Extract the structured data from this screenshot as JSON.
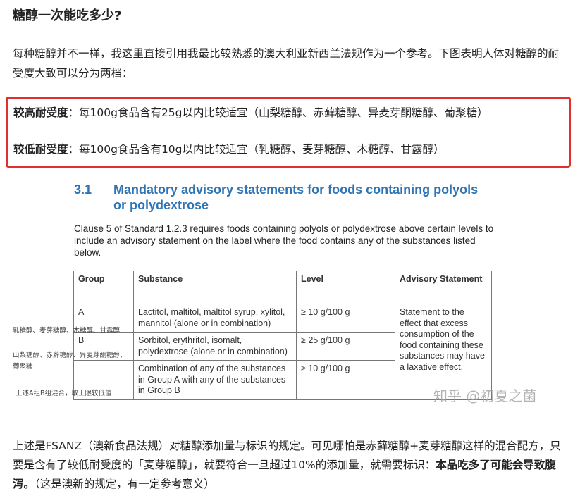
{
  "heading": "糖醇一次能吃多少?",
  "intro": "每种糖醇并不一样，我这里直接引用我最比较熟悉的澳大利亚新西兰法规作为一个参考。下图表明人体对糖醇的耐受度大致可以分为两档：",
  "highlight": {
    "high_label": "较高耐受度",
    "high_text": "：每100g食品含有25g以内比较适宜（山梨糖醇、赤藓糖醇、异麦芽酮糖醇、葡聚糖）",
    "low_label": "较低耐受度",
    "low_text": "：每100g食品含有10g以内比较适宜（乳糖醇、麦芽糖醇、木糖醇、甘露醇）",
    "border_color": "#e0302d"
  },
  "figure": {
    "section_number": "3.1",
    "section_title_1": "Mandatory advisory statements for foods containing polyols",
    "section_title_2": "or polydextrose",
    "clause": "Clause 5 of Standard 1.2.3 requires foods containing polyols or polydextrose above certain levels to include an advisory statement on the label where the food contains any of the substances listed below.",
    "headers": [
      "Group",
      "Substance",
      "Level",
      "Advisory Statement"
    ],
    "rows": [
      {
        "group": "A",
        "substance": "Lactitol, maltitol, maltitol syrup, xylitol, mannitol (alone or in combination)",
        "level": "≥ 10 g/100 g"
      },
      {
        "group": "B",
        "substance": "Sorbitol, erythritol, isomalt, polydextrose (alone or in combination)",
        "level": "≥ 25 g/100 g"
      },
      {
        "group": "",
        "substance": "Combination of any of the substances in Group A with any of the substances in Group B",
        "level": "≥ 10 g/100 g"
      }
    ],
    "statement": "Statement to the effect that excess consumption of the food containing these substances may have a laxative effect.",
    "annotations": [
      "乳糖醇、麦芽糖醇、木糖醇、甘露醇",
      "山梨糖醇、赤藓糖醇、异麦芽酮糖醇、葡聚糖",
      "上述A组B组混合，取上限较低值"
    ],
    "watermark": "知乎 @初夏之菌",
    "title_color": "#2f74b5"
  },
  "outro_1": "上述是FSANZ（澳新食品法规）对糖醇添加量与标识的规定。可见哪怕是赤藓糖醇+麦芽糖醇这样的混合配方，只要是含有了较低耐受度的「麦芽糖醇」，就要符合一旦超过10%的添加量，就需要标识：",
  "outro_bold": "本品吃多了可能会导致腹泻。",
  "outro_2": "（这是澳新的规定，有一定参考意义）"
}
